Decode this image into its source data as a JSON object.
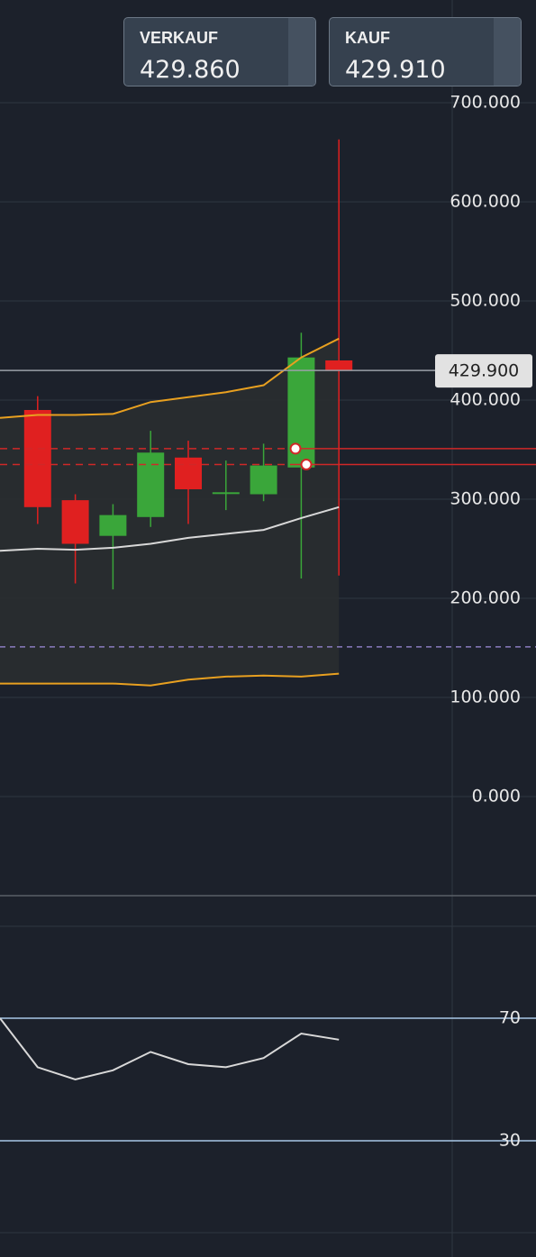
{
  "sell": {
    "label": "VERKAUF",
    "price": "429.860"
  },
  "buy": {
    "label": "KAUF",
    "price": "429.910"
  },
  "chart_data": [
    {
      "type": "candlestick",
      "categories": [
        null,
        null,
        null,
        null,
        null,
        null,
        null,
        null,
        null,
        null
      ],
      "open": [
        null,
        390,
        299,
        263,
        282,
        342,
        306,
        305,
        332,
        440
      ],
      "high": [
        null,
        404,
        305,
        295,
        369,
        359,
        339,
        356,
        468,
        663
      ],
      "low": [
        null,
        275,
        215,
        209,
        272,
        275,
        289,
        298,
        220,
        223
      ],
      "close": [
        null,
        292,
        255,
        284,
        347,
        310,
        307,
        334,
        443,
        430
      ],
      "up_color": "#3aa63a",
      "down_color": "#e02020",
      "series": [
        {
          "color": "#e8a020",
          "values": [
            382,
            385,
            385,
            386,
            398,
            403,
            408,
            415,
            443,
            462
          ]
        },
        {
          "color": "#d8d8d8",
          "values": [
            248,
            250,
            249,
            251,
            255,
            261,
            265,
            269,
            281,
            292
          ]
        },
        {
          "color": "#e8a020",
          "values": [
            114,
            114,
            114,
            114,
            112,
            118,
            121,
            122,
            121,
            124
          ]
        }
      ],
      "levels": [
        {
          "value": 351,
          "color": "#d02828"
        },
        {
          "value": 335,
          "color": "#d02828"
        },
        {
          "value": 151,
          "color": "#8a7cc0"
        }
      ],
      "price_label": {
        "value": 429.9,
        "label": "429.900"
      },
      "ylim": [
        -100,
        800
      ],
      "yticks": [
        {
          "value": 0,
          "label": "0.000"
        },
        {
          "value": 100,
          "label": "100.000"
        },
        {
          "value": 200,
          "label": "200.000"
        },
        {
          "value": 300,
          "label": "300.000"
        },
        {
          "value": 400,
          "label": "400.000"
        },
        {
          "value": 500,
          "label": "500.000"
        },
        {
          "value": 600,
          "label": "600.000"
        },
        {
          "value": 700,
          "label": "700.000"
        }
      ],
      "grid": true
    },
    {
      "type": "line",
      "categories": [
        null,
        null,
        null,
        null,
        null,
        null,
        null,
        null,
        null,
        null
      ],
      "series": [
        {
          "color": "#d8d8d8",
          "values": [
            70,
            54,
            50,
            53,
            59,
            55,
            54,
            57,
            65,
            63
          ]
        }
      ],
      "ylim": [
        0,
        100
      ],
      "yticks": [
        30,
        70
      ]
    }
  ]
}
